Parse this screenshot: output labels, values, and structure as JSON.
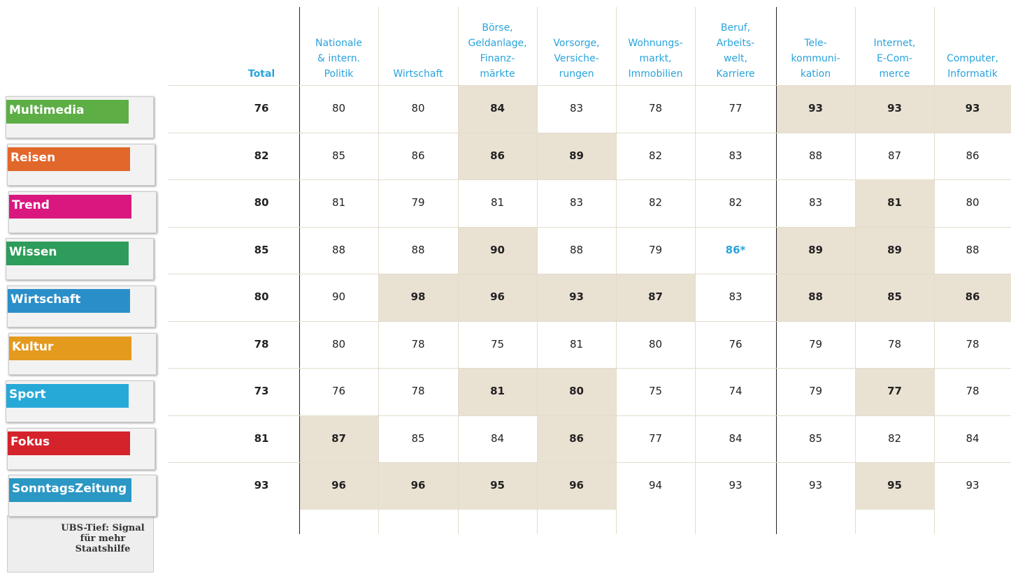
{
  "header": {
    "total": "Total",
    "columns": [
      [
        "Nationale",
        "& intern.",
        "Politik"
      ],
      [
        "Wirtschaft"
      ],
      [
        "Börse,",
        "Geldanlage,",
        "Finanz-",
        "märkte"
      ],
      [
        "Vorsorge,",
        "Versiche-",
        "rungen"
      ],
      [
        "Wohnungs-",
        "markt,",
        "Immobilien"
      ],
      [
        "Beruf,",
        "Arbeits-",
        "welt,",
        "Karriere"
      ],
      [
        "Tele-",
        "kommuni-",
        "kation"
      ],
      [
        "Internet,",
        "E-Com-",
        "merce"
      ],
      [
        "Computer,",
        "Informatik"
      ]
    ]
  },
  "rows": [
    {
      "section": "Multimedia",
      "color": "#5cae45",
      "values": [
        76,
        80,
        80,
        84,
        83,
        78,
        77,
        93,
        93,
        93
      ],
      "highlight": [
        3,
        7,
        8,
        9
      ]
    },
    {
      "section": "Reisen",
      "color": "#e2672b",
      "values": [
        82,
        85,
        86,
        86,
        89,
        82,
        83,
        88,
        87,
        86
      ],
      "highlight": [
        3,
        4
      ]
    },
    {
      "section": "Trend",
      "color": "#d9177f",
      "values": [
        80,
        81,
        79,
        81,
        83,
        82,
        82,
        83,
        81,
        80
      ],
      "highlight": [
        8
      ]
    },
    {
      "section": "Wissen",
      "color": "#2e9c5a",
      "values": [
        85,
        88,
        88,
        90,
        88,
        79,
        "86*",
        89,
        89,
        88
      ],
      "highlight": [
        3,
        7,
        8
      ],
      "accent": [
        6
      ]
    },
    {
      "section": "Wirtschaft",
      "color": "#2a8fc9",
      "values": [
        80,
        90,
        98,
        96,
        93,
        87,
        83,
        88,
        85,
        86
      ],
      "highlight": [
        2,
        3,
        4,
        5,
        7,
        8,
        9
      ]
    },
    {
      "section": "Kultur",
      "color": "#e39a1d",
      "values": [
        78,
        80,
        78,
        75,
        81,
        80,
        76,
        79,
        78,
        78
      ],
      "highlight": []
    },
    {
      "section": "Sport",
      "color": "#27a9d8",
      "values": [
        73,
        76,
        78,
        81,
        80,
        75,
        74,
        79,
        77,
        78
      ],
      "highlight": [
        3,
        4,
        8
      ]
    },
    {
      "section": "Fokus",
      "color": "#d4232b",
      "values": [
        81,
        87,
        85,
        84,
        86,
        77,
        84,
        85,
        82,
        84
      ],
      "highlight": [
        1,
        4
      ]
    },
    {
      "section": "SonntagsZeitung",
      "color": "#2a97c4",
      "values": [
        93,
        96,
        96,
        95,
        96,
        94,
        93,
        93,
        95,
        93
      ],
      "highlight": [
        1,
        2,
        3,
        4,
        8
      ]
    }
  ],
  "extra_page": {
    "headline": "UBS-Tief: Signal für mehr Staatshilfe"
  }
}
